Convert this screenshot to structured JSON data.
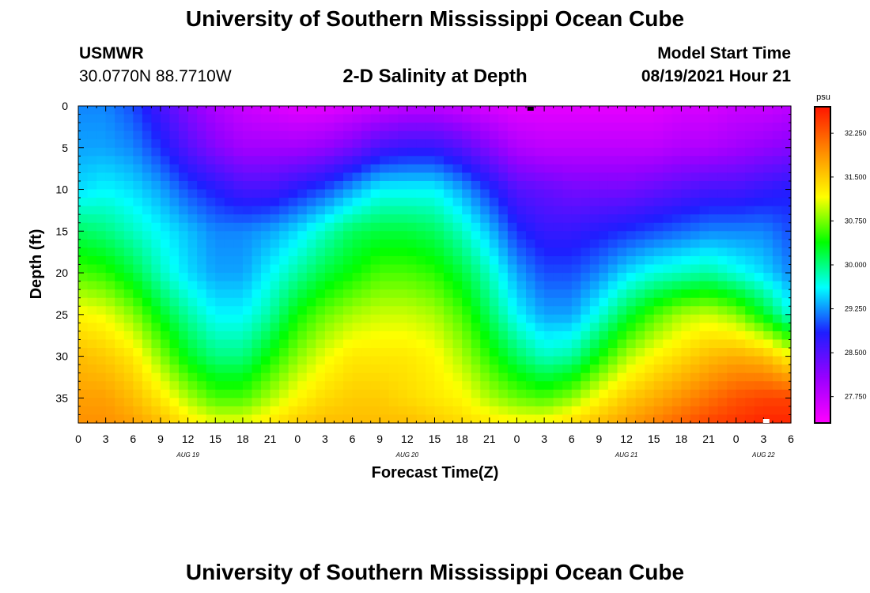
{
  "header": {
    "title": "University of Southern Mississippi Ocean Cube",
    "station_id": "USMWR",
    "station_coords": "30.0770N  88.7710W",
    "plot_title": "2-D Salinity at Depth",
    "model_start_label": "Model Start Time",
    "model_start_value": "08/19/2021 Hour 21"
  },
  "footer": {
    "title": "University of Southern Mississippi Ocean Cube"
  },
  "chart_data": {
    "type": "heatmap",
    "title": "2-D Salinity at Depth",
    "xlabel": "Forecast Time(Z)",
    "ylabel": "Depth (ft)",
    "x_hours": [
      0,
      3,
      6,
      9,
      12,
      15,
      18,
      21,
      24,
      27,
      30,
      33,
      36,
      39,
      42,
      45,
      48,
      51,
      54,
      57,
      60,
      63,
      66,
      69,
      72,
      75,
      78
    ],
    "x_tick_labels": [
      "0",
      "3",
      "6",
      "9",
      "12",
      "15",
      "18",
      "21",
      "0",
      "3",
      "6",
      "9",
      "12",
      "15",
      "18",
      "21",
      "0",
      "3",
      "6",
      "9",
      "12",
      "15",
      "18",
      "21",
      "0",
      "3",
      "6"
    ],
    "date_labels": [
      {
        "hour": 12,
        "label": "AUG 19"
      },
      {
        "hour": 36,
        "label": "AUG 20"
      },
      {
        "hour": 60,
        "label": "AUG 21"
      },
      {
        "hour": 75,
        "label": "AUG 22"
      }
    ],
    "y_ticks": [
      0,
      5,
      10,
      15,
      20,
      25,
      30,
      35
    ],
    "ylim": [
      38,
      0
    ],
    "xlim": [
      0,
      78
    ],
    "depths_ft": [
      0,
      5,
      10,
      15,
      20,
      25,
      30,
      35,
      38
    ],
    "salinity_psu": [
      [
        29.2,
        29.2,
        29.0,
        28.6,
        28.2,
        27.9,
        27.7,
        27.6,
        27.5,
        27.5,
        27.6,
        27.7,
        27.8,
        27.8,
        27.7,
        27.6,
        27.5,
        27.5,
        27.5,
        27.5,
        27.5,
        27.5,
        27.6,
        27.6,
        27.7,
        27.7,
        27.8
      ],
      [
        29.3,
        29.3,
        29.2,
        28.9,
        28.5,
        28.2,
        28.0,
        28.0,
        28.0,
        28.1,
        28.3,
        28.6,
        28.7,
        28.7,
        28.5,
        28.2,
        27.9,
        27.8,
        27.8,
        27.8,
        27.8,
        27.8,
        27.9,
        27.9,
        28.0,
        28.1,
        28.2
      ],
      [
        29.5,
        29.6,
        29.5,
        29.3,
        29.0,
        28.8,
        28.6,
        28.6,
        28.8,
        29.0,
        29.3,
        29.6,
        29.6,
        29.6,
        29.3,
        28.9,
        28.5,
        28.4,
        28.3,
        28.3,
        28.3,
        28.4,
        28.5,
        28.6,
        28.6,
        28.7,
        28.8
      ],
      [
        30.1,
        30.0,
        29.8,
        29.6,
        29.4,
        29.2,
        29.2,
        29.3,
        29.5,
        29.8,
        30.1,
        30.2,
        30.2,
        30.1,
        29.8,
        29.4,
        28.9,
        28.7,
        28.7,
        28.8,
        28.9,
        29.0,
        29.1,
        29.2,
        29.2,
        29.2,
        29.0
      ],
      [
        30.6,
        30.5,
        30.2,
        29.8,
        29.5,
        29.3,
        29.3,
        29.6,
        29.9,
        30.2,
        30.4,
        30.6,
        30.6,
        30.5,
        30.2,
        29.8,
        29.3,
        29.0,
        29.0,
        29.2,
        29.5,
        29.7,
        29.8,
        29.9,
        29.7,
        29.5,
        29.2
      ],
      [
        31.2,
        31.1,
        30.8,
        30.3,
        29.9,
        29.6,
        29.6,
        29.9,
        30.4,
        30.7,
        30.9,
        31.0,
        31.0,
        30.9,
        30.6,
        30.1,
        29.6,
        29.3,
        29.3,
        29.7,
        30.2,
        30.6,
        30.9,
        31.0,
        30.8,
        30.3,
        29.7
      ],
      [
        31.6,
        31.5,
        31.3,
        30.8,
        30.3,
        30.0,
        30.0,
        30.4,
        30.8,
        31.1,
        31.3,
        31.3,
        31.3,
        31.2,
        30.9,
        30.5,
        30.1,
        29.8,
        29.9,
        30.4,
        30.9,
        31.2,
        31.4,
        31.6,
        31.7,
        31.6,
        31.2
      ],
      [
        31.8,
        31.8,
        31.6,
        31.3,
        30.9,
        30.6,
        30.6,
        30.9,
        31.2,
        31.4,
        31.5,
        31.5,
        31.4,
        31.3,
        31.2,
        30.9,
        30.7,
        30.6,
        30.8,
        31.2,
        31.5,
        31.7,
        31.9,
        32.1,
        32.3,
        32.4,
        32.4
      ],
      [
        31.9,
        31.9,
        31.8,
        31.6,
        31.3,
        31.1,
        31.1,
        31.3,
        31.5,
        31.6,
        31.6,
        31.6,
        31.6,
        31.5,
        31.4,
        31.3,
        31.2,
        31.2,
        31.4,
        31.6,
        31.8,
        32.0,
        32.2,
        32.4,
        32.5,
        32.6,
        32.6
      ]
    ],
    "colorbar": {
      "unit": "psu",
      "min": 27.3,
      "max": 32.7,
      "tick_labels": [
        "32.250",
        "31.500",
        "30.750",
        "30.000",
        "29.250",
        "28.500",
        "27.750"
      ],
      "tick_values": [
        32.25,
        31.5,
        30.75,
        30.0,
        29.25,
        28.5,
        27.75
      ],
      "colors": [
        "#ff00ff",
        "#9900ff",
        "#1e1eff",
        "#00ffff",
        "#00ff00",
        "#ffff00",
        "#ff8c00",
        "#ff1500"
      ]
    },
    "markers": [
      {
        "hour": 49.5,
        "depth": 0,
        "color": "#000000"
      },
      {
        "hour": 75.3,
        "depth": 38,
        "color": "#ffffff"
      }
    ],
    "grid": false
  }
}
